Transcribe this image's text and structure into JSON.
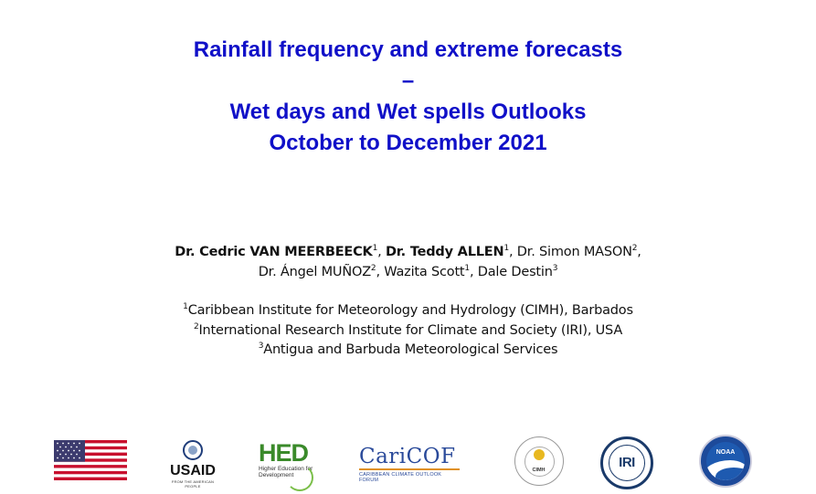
{
  "title": {
    "line1": "Rainfall frequency and extreme forecasts",
    "line2": "–",
    "line3": "Wet days and Wet spells Outlooks",
    "line4": "October to December 2021"
  },
  "authors": {
    "a1_name": "Dr. Cedric VAN MEERBEECK",
    "a1_sup": "1",
    "a2_name": "Dr. Teddy ALLEN",
    "a2_sup": "1",
    "a3_name": "Dr. Simon MASON",
    "a3_sup": "2",
    "a4_name": "Dr. Ángel MUÑOZ",
    "a4_sup": "2",
    "a5_name": "Wazita Scott",
    "a5_sup": "1",
    "a6_name": "Dale Destin",
    "a6_sup": "3"
  },
  "affiliations": [
    {
      "sup": "1",
      "text": "Caribbean Institute for Meteorology and Hydrology (CIMH), Barbados"
    },
    {
      "sup": "2",
      "text": "International Research Institute for Climate and Society (IRI), USA"
    },
    {
      "sup": "3",
      "text": "Antigua and Barbuda Meteorological Services"
    }
  ],
  "logos": {
    "usaid_text": "USAID",
    "usaid_tag": "FROM THE AMERICAN PEOPLE",
    "hed_text": "HED",
    "hed_sub": "Higher Education for Development",
    "caricof_text": "CariCOF",
    "caricof_tag": "CARIBBEAN CLIMATE OUTLOOK FORUM",
    "cimh_text": "CIMH",
    "iri_text": "IRI",
    "noaa_text": "NOAA"
  },
  "colors": {
    "title": "#1010c8",
    "flag_red": "#c8102e",
    "flag_blue": "#3c3b6e"
  }
}
